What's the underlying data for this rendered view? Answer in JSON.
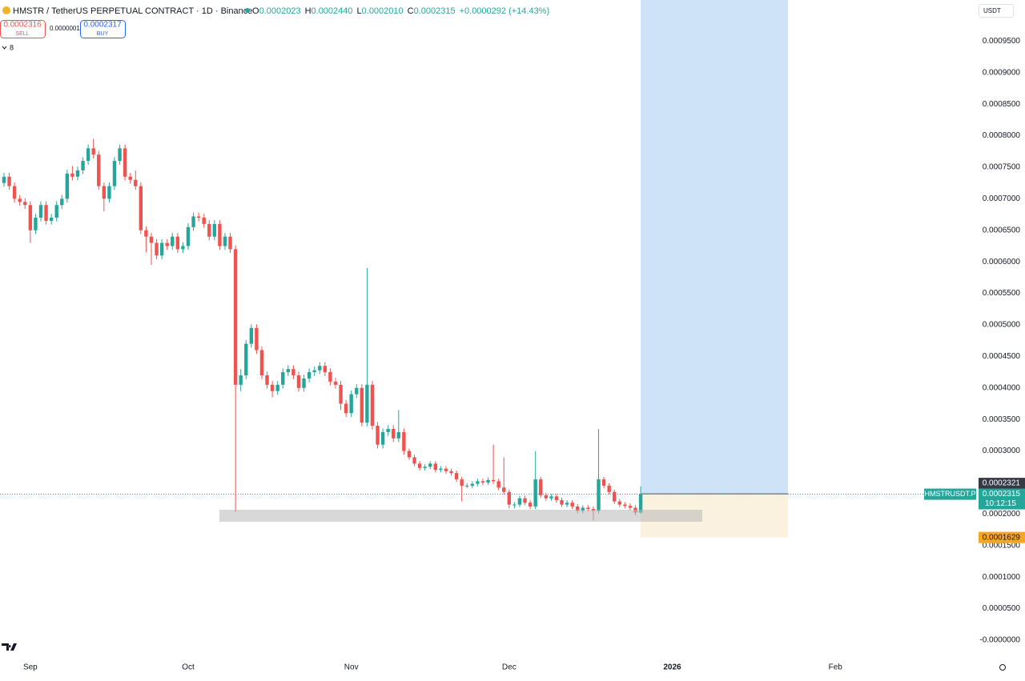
{
  "toolbar": {
    "symbol": "HMSTR / TetherUS PERPETUAL CONTRACT · 1D · Binance",
    "ohlc": [
      {
        "key": "O",
        "value": "0.0002023"
      },
      {
        "key": "H",
        "value": "0.0002440"
      },
      {
        "key": "L",
        "value": "0.0002010"
      },
      {
        "key": "C",
        "value": "0.0002315"
      }
    ],
    "change": "+0.0000292 (+14.43%)",
    "sell": {
      "price": "0.0002316",
      "label": "SELL"
    },
    "spread": "0.0000001",
    "buy": {
      "price": "0.0002317",
      "label": "BUY"
    },
    "indicators": "8",
    "currency": "USDT",
    "symbol_label": "HMSTRUSDT.P",
    "countdown": "10:12:15"
  },
  "chart_data": {
    "type": "candlestick",
    "up_color": "#26a69a",
    "down_color": "#ef5350",
    "open": [
      0.000725,
      0.000735,
      0.00072,
      0.0007,
      0.000695,
      0.00069,
      0.00065,
      0.00067,
      0.00069,
      0.000665,
      0.00067,
      0.00069,
      0.0007,
      0.00074,
      0.000735,
      0.000745,
      0.00076,
      0.00078,
      0.00077,
      0.00072,
      0.0007,
      0.00072,
      0.00076,
      0.00078,
      0.000735,
      0.00073,
      0.00072,
      0.00065,
      0.00064,
      0.00063,
      0.00061,
      0.00063,
      0.000625,
      0.00064,
      0.00062,
      0.000625,
      0.000655,
      0.000672,
      0.00067,
      0.00066,
      0.00064,
      0.00066,
      0.000625,
      0.00064,
      0.00062,
      0.000405,
      0.00042,
      0.00047,
      0.000495,
      0.00046,
      0.00042,
      0.000405,
      0.000395,
      0.000405,
      0.000425,
      0.00043,
      0.00042,
      0.0004,
      0.000415,
      0.000425,
      0.000428,
      0.000435,
      0.000425,
      0.00041,
      0.000405,
      0.000375,
      0.00036,
      0.00039,
      0.0004,
      0.000345,
      0.000405,
      0.00034,
      0.00031,
      0.00033,
      0.000335,
      0.00032,
      0.00033,
      0.0003,
      0.00029,
      0.00028,
      0.000273,
      0.000275,
      0.00028,
      0.00027,
      0.000272,
      0.000268,
      0.000265,
      0.000255,
      0.000245,
      0.000245,
      0.000248,
      0.000252,
      0.00025,
      0.000254,
      0.000252,
      0.000242,
      0.000235,
      0.000215,
      0.000215,
      0.000225,
      0.000218,
      0.000212,
      0.000255,
      0.00023,
      0.000225,
      0.000228,
      0.000222,
      0.000215,
      0.000218,
      0.000212,
      0.000205,
      0.00021,
      0.000208,
      0.000205,
      0.000255,
      0.000245,
      0.000235,
      0.00022,
      0.000215,
      0.000213,
      0.00021,
      0.0002023
    ],
    "high": [
      0.000741,
      0.000741,
      0.000726,
      0.000706,
      0.000701,
      0.000696,
      0.000676,
      0.000696,
      0.000696,
      0.000676,
      0.000696,
      0.000706,
      0.000746,
      0.000752,
      0.000751,
      0.000766,
      0.000786,
      0.000795,
      0.000776,
      0.000726,
      0.000726,
      0.000766,
      0.000786,
      0.000786,
      0.000741,
      0.000745,
      0.000726,
      0.000656,
      0.000646,
      0.000636,
      0.000636,
      0.000636,
      0.000646,
      0.000646,
      0.000631,
      0.000661,
      0.000678,
      0.000678,
      0.000676,
      0.000666,
      0.000666,
      0.000666,
      0.000646,
      0.000646,
      0.000626,
      0.00043,
      0.000476,
      0.000501,
      0.000501,
      0.000466,
      0.000426,
      0.000411,
      0.000411,
      0.000431,
      0.000436,
      0.000436,
      0.000426,
      0.000421,
      0.000431,
      0.000434,
      0.000441,
      0.000441,
      0.000431,
      0.000416,
      0.000411,
      0.000381,
      0.000396,
      0.000406,
      0.000406,
      0.00059,
      0.000411,
      0.000346,
      0.000336,
      0.000341,
      0.000341,
      0.000365,
      0.000336,
      0.000304,
      0.000294,
      0.000284,
      0.000279,
      0.000284,
      0.000284,
      0.000276,
      0.000276,
      0.000272,
      0.000269,
      0.000259,
      0.000249,
      0.000252,
      0.000256,
      0.000256,
      0.000258,
      0.00031,
      0.000256,
      0.00029,
      0.000239,
      0.000219,
      0.000229,
      0.000229,
      0.000222,
      0.0003,
      0.000259,
      0.000234,
      0.000232,
      0.000232,
      0.000226,
      0.000222,
      0.000222,
      0.000216,
      0.000214,
      0.000214,
      0.000212,
      0.000335,
      0.000259,
      0.000249,
      0.000239,
      0.000224,
      0.000219,
      0.000217,
      0.000214,
      0.000244
    ],
    "low": [
      0.000719,
      0.000714,
      0.000694,
      0.000689,
      0.000684,
      0.00063,
      0.000644,
      0.000664,
      0.000659,
      0.000659,
      0.000664,
      0.000684,
      0.000694,
      0.000729,
      0.000729,
      0.000739,
      0.000754,
      0.000764,
      0.000714,
      0.00068,
      0.000694,
      0.000714,
      0.000754,
      0.000729,
      0.000724,
      0.000714,
      0.000644,
      0.000615,
      0.000595,
      0.000604,
      0.000604,
      0.000619,
      0.000619,
      0.000614,
      0.000614,
      0.000619,
      0.000649,
      0.000664,
      0.000654,
      0.000634,
      0.000634,
      0.000619,
      0.000619,
      0.000614,
      0.000203,
      0.000395,
      0.000414,
      0.000464,
      0.000454,
      0.000414,
      0.000399,
      0.000385,
      0.000389,
      0.000399,
      0.000419,
      0.000414,
      0.000394,
      0.000394,
      0.000409,
      0.000419,
      0.000422,
      0.000419,
      0.000404,
      0.000399,
      0.000365,
      0.000354,
      0.000354,
      0.000384,
      0.000339,
      0.000339,
      0.000334,
      0.000304,
      0.000304,
      0.000324,
      0.000314,
      0.000314,
      0.000294,
      0.000286,
      0.000276,
      0.000269,
      0.000269,
      0.000271,
      0.000266,
      0.000266,
      0.000264,
      0.000261,
      0.000251,
      0.00022,
      0.000241,
      0.000241,
      0.000244,
      0.000246,
      0.000246,
      0.000248,
      0.000238,
      0.000231,
      0.000209,
      0.000209,
      0.000211,
      0.000214,
      0.000208,
      0.000208,
      0.000226,
      0.000221,
      0.000221,
      0.000218,
      0.000211,
      0.000211,
      0.000208,
      0.000201,
      0.000201,
      0.000204,
      0.00019,
      0.000201,
      0.000241,
      0.000231,
      0.000216,
      0.000211,
      0.000209,
      0.000206,
      0.000198,
      0.000201
    ],
    "close": [
      0.000735,
      0.00072,
      0.0007,
      0.000695,
      0.00069,
      0.00065,
      0.00067,
      0.00069,
      0.000665,
      0.00067,
      0.00069,
      0.0007,
      0.00074,
      0.000735,
      0.000745,
      0.00076,
      0.00078,
      0.00077,
      0.00072,
      0.0007,
      0.00072,
      0.00076,
      0.00078,
      0.000735,
      0.00073,
      0.00072,
      0.00065,
      0.00064,
      0.00063,
      0.00061,
      0.00063,
      0.000625,
      0.00064,
      0.00062,
      0.000625,
      0.000655,
      0.000672,
      0.00067,
      0.00066,
      0.00064,
      0.00066,
      0.000625,
      0.00064,
      0.00062,
      0.000405,
      0.00042,
      0.00047,
      0.000495,
      0.00046,
      0.00042,
      0.000405,
      0.000395,
      0.000405,
      0.000425,
      0.00043,
      0.00042,
      0.0004,
      0.000415,
      0.000425,
      0.000428,
      0.000435,
      0.000425,
      0.00041,
      0.000405,
      0.000375,
      0.00036,
      0.00039,
      0.0004,
      0.000345,
      0.000405,
      0.00034,
      0.00031,
      0.00033,
      0.000335,
      0.00032,
      0.00033,
      0.0003,
      0.00029,
      0.00028,
      0.000273,
      0.000275,
      0.00028,
      0.00027,
      0.000272,
      0.000268,
      0.000265,
      0.000255,
      0.000245,
      0.000245,
      0.000248,
      0.000252,
      0.00025,
      0.000254,
      0.000252,
      0.000242,
      0.000235,
      0.000215,
      0.000215,
      0.000225,
      0.000218,
      0.000212,
      0.000255,
      0.00023,
      0.000225,
      0.000228,
      0.000222,
      0.000215,
      0.000218,
      0.000212,
      0.000205,
      0.00021,
      0.000208,
      0.000205,
      0.000255,
      0.000245,
      0.000235,
      0.00022,
      0.000215,
      0.000213,
      0.00021,
      0.0002023,
      0.0002315
    ],
    "xlim": [
      -0.76,
      184.6
    ],
    "xticks": [
      {
        "value": 5,
        "label": "Sep"
      },
      {
        "value": 35,
        "label": "Oct"
      },
      {
        "value": 66,
        "label": "Nov"
      },
      {
        "value": 96,
        "label": "Dec"
      },
      {
        "value": 127,
        "label": "2026"
      },
      {
        "value": 158,
        "label": "Feb"
      }
    ],
    "ylim": [
      -2.54e-05,
      0.0010152
    ],
    "yticks": [
      {
        "value": 0.00095,
        "label": "0.0009500"
      },
      {
        "value": 0.0009,
        "label": "0.0009000"
      },
      {
        "value": 0.00085,
        "label": "0.0008500"
      },
      {
        "value": 0.0008,
        "label": "0.0008000"
      },
      {
        "value": 0.00075,
        "label": "0.0007500"
      },
      {
        "value": 0.0007,
        "label": "0.0007000"
      },
      {
        "value": 0.00065,
        "label": "0.0006500"
      },
      {
        "value": 0.0006,
        "label": "0.0006000"
      },
      {
        "value": 0.00055,
        "label": "0.0005500"
      },
      {
        "value": 0.0005,
        "label": "0.0005000"
      },
      {
        "value": 0.00045,
        "label": "0.0004500"
      },
      {
        "value": 0.0004,
        "label": "0.0004000"
      },
      {
        "value": 0.00035,
        "label": "0.0003500"
      },
      {
        "value": 0.0003,
        "label": "0.0003000"
      },
      {
        "value": 0.00025,
        "label": "0.0002500"
      },
      {
        "value": 0.0002,
        "label": "0.0002000"
      },
      {
        "value": 0.00015,
        "label": "0.0001500"
      },
      {
        "value": 0.0001,
        "label": "0.0001000"
      },
      {
        "value": 5e-05,
        "label": "0.0000500"
      },
      {
        "value": 0,
        "label": "-0.0000000"
      }
    ],
    "position": {
      "entry": 0.0002321,
      "stop": 0.0001629
    }
  }
}
